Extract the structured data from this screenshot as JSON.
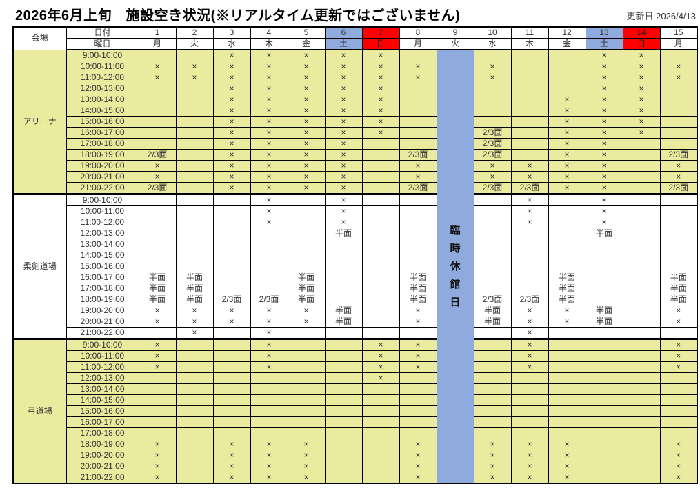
{
  "page": {
    "title": "2026年6月上旬　施設空き状況(※リアルタイム更新ではございません)",
    "updated_label": "更新日 2026/4/13"
  },
  "colors": {
    "saturday_header": "#8FAADC",
    "sunday_header": "#FF0000",
    "closure_column": "#8FAADC",
    "section_yellow": "#EBEBA0",
    "border": "#000000"
  },
  "table": {
    "corner_label": "会場",
    "row_header_labels": {
      "date": "日付",
      "day": "曜日"
    },
    "columns": [
      {
        "date": "1",
        "day": "月",
        "type": "normal"
      },
      {
        "date": "2",
        "day": "火",
        "type": "normal"
      },
      {
        "date": "3",
        "day": "水",
        "type": "normal"
      },
      {
        "date": "4",
        "day": "木",
        "type": "normal"
      },
      {
        "date": "5",
        "day": "金",
        "type": "normal"
      },
      {
        "date": "6",
        "day": "土",
        "type": "saturday"
      },
      {
        "date": "7",
        "day": "日",
        "type": "sunday"
      },
      {
        "date": "8",
        "day": "月",
        "type": "normal"
      },
      {
        "date": "9",
        "day": "火",
        "type": "closed"
      },
      {
        "date": "10",
        "day": "水",
        "type": "normal"
      },
      {
        "date": "11",
        "day": "木",
        "type": "normal"
      },
      {
        "date": "12",
        "day": "金",
        "type": "normal"
      },
      {
        "date": "13",
        "day": "土",
        "type": "saturday"
      },
      {
        "date": "14",
        "day": "日",
        "type": "sunday"
      },
      {
        "date": "15",
        "day": "月",
        "type": "normal"
      }
    ],
    "closure": {
      "column_date": "9",
      "label": "臨時休館日"
    },
    "cell_value_meanings": {
      "unavailable": "×",
      "half_court": "半面",
      "two_thirds_court": "2/3面"
    },
    "time_slots": [
      "9:00-10:00",
      "10:00-11:00",
      "11:00-12:00",
      "12:00-13:00",
      "13:00-14:00",
      "14:00-15:00",
      "15:00-16:00",
      "16:00-17:00",
      "17:00-18:00",
      "18:00-19:00",
      "19:00-20:00",
      "20:00-21:00",
      "21:00-22:00"
    ],
    "sections": [
      {
        "venue": "アリーナ",
        "tone": "yellow",
        "rows": [
          [
            "",
            "",
            "×",
            "×",
            "×",
            "×",
            "×",
            "",
            "",
            "",
            "",
            "",
            "×",
            "×",
            ""
          ],
          [
            "×",
            "×",
            "×",
            "×",
            "×",
            "×",
            "×",
            "×",
            "",
            "×",
            "",
            "",
            "×",
            "×",
            "×"
          ],
          [
            "×",
            "×",
            "×",
            "×",
            "×",
            "×",
            "×",
            "×",
            "",
            "×",
            "",
            "",
            "×",
            "×",
            "×"
          ],
          [
            "",
            "",
            "×",
            "×",
            "×",
            "×",
            "×",
            "",
            "",
            "",
            "",
            "",
            "×",
            "×",
            ""
          ],
          [
            "",
            "",
            "×",
            "×",
            "×",
            "×",
            "×",
            "",
            "",
            "",
            "",
            "×",
            "×",
            "×",
            ""
          ],
          [
            "",
            "",
            "×",
            "×",
            "×",
            "×",
            "×",
            "",
            "",
            "",
            "",
            "×",
            "×",
            "×",
            ""
          ],
          [
            "",
            "",
            "×",
            "×",
            "×",
            "×",
            "×",
            "",
            "",
            "",
            "",
            "×",
            "×",
            "×",
            ""
          ],
          [
            "",
            "",
            "×",
            "×",
            "×",
            "×",
            "×",
            "",
            "",
            "2/3面",
            "",
            "×",
            "×",
            "×",
            ""
          ],
          [
            "",
            "",
            "×",
            "×",
            "×",
            "×",
            "",
            "",
            "",
            "2/3面",
            "",
            "×",
            "×",
            "",
            ""
          ],
          [
            "2/3面",
            "",
            "×",
            "×",
            "×",
            "×",
            "",
            "2/3面",
            "",
            "2/3面",
            "",
            "×",
            "×",
            "",
            "2/3面"
          ],
          [
            "×",
            "",
            "×",
            "×",
            "×",
            "×",
            "",
            "×",
            "",
            "×",
            "×",
            "×",
            "×",
            "",
            "×"
          ],
          [
            "×",
            "",
            "×",
            "×",
            "×",
            "×",
            "",
            "×",
            "",
            "×",
            "×",
            "×",
            "×",
            "",
            "×"
          ],
          [
            "2/3面",
            "",
            "×",
            "×",
            "×",
            "×",
            "",
            "2/3面",
            "",
            "2/3面",
            "2/3面",
            "×",
            "×",
            "",
            "2/3面"
          ]
        ]
      },
      {
        "venue": "柔剣道場",
        "tone": "white",
        "rows": [
          [
            "",
            "",
            "",
            "×",
            "",
            "×",
            "",
            "",
            "",
            "",
            "×",
            "",
            "×",
            "",
            ""
          ],
          [
            "",
            "",
            "",
            "×",
            "",
            "×",
            "",
            "",
            "",
            "",
            "×",
            "",
            "×",
            "",
            ""
          ],
          [
            "",
            "",
            "",
            "×",
            "",
            "×",
            "",
            "",
            "",
            "",
            "×",
            "",
            "×",
            "",
            ""
          ],
          [
            "",
            "",
            "",
            "",
            "",
            "半面",
            "",
            "",
            "",
            "",
            "",
            "",
            "半面",
            "",
            ""
          ],
          [
            "",
            "",
            "",
            "",
            "",
            "",
            "",
            "",
            "",
            "",
            "",
            "",
            "",
            "",
            ""
          ],
          [
            "",
            "",
            "",
            "",
            "",
            "",
            "",
            "",
            "",
            "",
            "",
            "",
            "",
            "",
            ""
          ],
          [
            "",
            "",
            "",
            "",
            "",
            "",
            "",
            "",
            "",
            "",
            "",
            "",
            "",
            "",
            ""
          ],
          [
            "半面",
            "半面",
            "",
            "",
            "半面",
            "",
            "",
            "半面",
            "",
            "",
            "",
            "半面",
            "",
            "",
            "半面"
          ],
          [
            "半面",
            "半面",
            "",
            "",
            "半面",
            "",
            "",
            "半面",
            "",
            "",
            "",
            "半面",
            "",
            "",
            "半面"
          ],
          [
            "半面",
            "半面",
            "2/3面",
            "2/3面",
            "半面",
            "",
            "",
            "半面",
            "",
            "2/3面",
            "2/3面",
            "半面",
            "",
            "",
            "半面"
          ],
          [
            "×",
            "×",
            "×",
            "×",
            "×",
            "半面",
            "",
            "×",
            "",
            "半面",
            "×",
            "×",
            "半面",
            "",
            "×"
          ],
          [
            "×",
            "×",
            "×",
            "×",
            "×",
            "半面",
            "",
            "×",
            "",
            "半面",
            "×",
            "×",
            "半面",
            "",
            "×"
          ],
          [
            "",
            "×",
            "",
            "×",
            "",
            "",
            "",
            "",
            "",
            "",
            "×",
            "",
            "",
            "",
            ""
          ]
        ]
      },
      {
        "venue": "弓道場",
        "tone": "yellow",
        "rows": [
          [
            "×",
            "",
            "",
            "×",
            "",
            "",
            "×",
            "×",
            "",
            "",
            "×",
            "",
            "",
            "",
            "×"
          ],
          [
            "×",
            "",
            "",
            "×",
            "",
            "",
            "×",
            "×",
            "",
            "",
            "×",
            "",
            "",
            "",
            "×"
          ],
          [
            "×",
            "",
            "",
            "×",
            "",
            "",
            "×",
            "×",
            "",
            "",
            "×",
            "",
            "",
            "",
            "×"
          ],
          [
            "",
            "",
            "",
            "",
            "",
            "",
            "×",
            "",
            "",
            "",
            "",
            "",
            "",
            "",
            ""
          ],
          [
            "",
            "",
            "",
            "",
            "",
            "",
            "",
            "",
            "",
            "",
            "",
            "",
            "",
            "",
            ""
          ],
          [
            "",
            "",
            "",
            "",
            "",
            "",
            "",
            "",
            "",
            "",
            "",
            "",
            "",
            "",
            ""
          ],
          [
            "",
            "",
            "",
            "",
            "",
            "",
            "",
            "",
            "",
            "",
            "",
            "",
            "",
            "",
            ""
          ],
          [
            "",
            "",
            "",
            "",
            "",
            "",
            "",
            "",
            "",
            "",
            "",
            "",
            "",
            "",
            ""
          ],
          [
            "",
            "",
            "",
            "",
            "",
            "",
            "",
            "",
            "",
            "",
            "",
            "",
            "",
            "",
            ""
          ],
          [
            "×",
            "",
            "×",
            "×",
            "×",
            "",
            "",
            "×",
            "",
            "×",
            "×",
            "×",
            "",
            "",
            "×"
          ],
          [
            "×",
            "",
            "×",
            "×",
            "×",
            "",
            "",
            "×",
            "",
            "×",
            "×",
            "×",
            "",
            "",
            "×"
          ],
          [
            "×",
            "",
            "×",
            "×",
            "×",
            "",
            "",
            "×",
            "",
            "×",
            "×",
            "×",
            "",
            "",
            "×"
          ],
          [
            "×",
            "",
            "×",
            "×",
            "×",
            "",
            "",
            "×",
            "",
            "×",
            "×",
            "×",
            "",
            "",
            "×"
          ]
        ]
      }
    ]
  }
}
